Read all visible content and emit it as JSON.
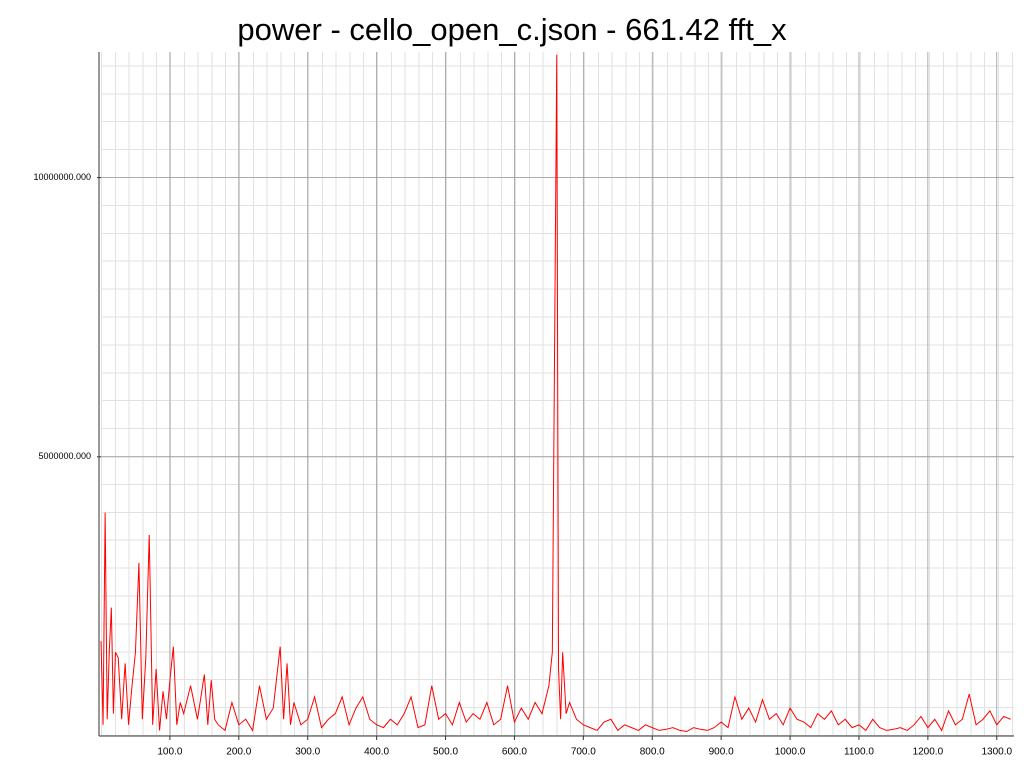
{
  "chart_data": {
    "type": "line",
    "title": "power - cello_open_c.json - 661.42 fft_x",
    "color": "#ff0000",
    "grid": true,
    "xlim": [
      0,
      1325
    ],
    "ylim": [
      0,
      12250000
    ],
    "xticks": [
      {
        "value": 100,
        "label": "100.0"
      },
      {
        "value": 200,
        "label": "200.0"
      },
      {
        "value": 300,
        "label": "300.0"
      },
      {
        "value": 400,
        "label": "400.0"
      },
      {
        "value": 500,
        "label": "500.0"
      },
      {
        "value": 600,
        "label": "600.0"
      },
      {
        "value": 700,
        "label": "700.0"
      },
      {
        "value": 800,
        "label": "800.0"
      },
      {
        "value": 900,
        "label": "900.0"
      },
      {
        "value": 1000,
        "label": "1000.0"
      },
      {
        "value": 1100,
        "label": "1100.0"
      },
      {
        "value": 1200,
        "label": "1200.0"
      },
      {
        "value": 1300,
        "label": "1300.0"
      }
    ],
    "yticks": [
      {
        "value": 5000000,
        "label": "5000000.000"
      },
      {
        "value": 10000000,
        "label": "10000000.000"
      }
    ],
    "x": [
      0,
      3,
      6,
      9,
      12,
      15,
      18,
      21,
      25,
      30,
      35,
      40,
      45,
      50,
      55,
      60,
      65,
      70,
      75,
      80,
      85,
      90,
      95,
      100,
      105,
      110,
      115,
      120,
      130,
      140,
      150,
      155,
      160,
      165,
      170,
      180,
      190,
      200,
      210,
      220,
      230,
      240,
      250,
      260,
      265,
      270,
      275,
      280,
      290,
      300,
      310,
      320,
      330,
      340,
      350,
      360,
      370,
      380,
      390,
      400,
      410,
      420,
      430,
      440,
      450,
      460,
      470,
      480,
      490,
      500,
      510,
      520,
      530,
      540,
      550,
      560,
      570,
      580,
      590,
      600,
      610,
      620,
      630,
      640,
      650,
      655,
      658,
      661.42,
      664,
      667,
      670,
      675,
      680,
      690,
      700,
      710,
      720,
      730,
      740,
      750,
      760,
      770,
      780,
      790,
      800,
      810,
      820,
      830,
      840,
      850,
      860,
      870,
      880,
      890,
      900,
      910,
      920,
      930,
      940,
      950,
      960,
      970,
      980,
      990,
      1000,
      1010,
      1020,
      1030,
      1040,
      1050,
      1060,
      1070,
      1080,
      1090,
      1100,
      1110,
      1120,
      1130,
      1140,
      1150,
      1160,
      1170,
      1180,
      1190,
      1200,
      1210,
      1220,
      1230,
      1240,
      1250,
      1260,
      1270,
      1280,
      1290,
      1300,
      1310,
      1320
    ],
    "values": [
      1700000,
      200000,
      4000000,
      300000,
      1500000,
      2300000,
      400000,
      1500000,
      1400000,
      300000,
      1300000,
      200000,
      900000,
      1500000,
      3100000,
      300000,
      1400000,
      3600000,
      200000,
      1200000,
      100000,
      800000,
      300000,
      1000000,
      1600000,
      200000,
      600000,
      400000,
      900000,
      300000,
      1100000,
      200000,
      1000000,
      300000,
      200000,
      100000,
      600000,
      200000,
      300000,
      100000,
      900000,
      300000,
      500000,
      1600000,
      300000,
      1300000,
      200000,
      600000,
      200000,
      300000,
      700000,
      150000,
      300000,
      400000,
      700000,
      200000,
      500000,
      700000,
      300000,
      200000,
      150000,
      300000,
      200000,
      400000,
      700000,
      150000,
      200000,
      900000,
      300000,
      400000,
      200000,
      600000,
      250000,
      400000,
      300000,
      600000,
      200000,
      300000,
      900000,
      250000,
      500000,
      300000,
      600000,
      400000,
      900000,
      1500000,
      6500000,
      12200000,
      1200000,
      300000,
      1500000,
      400000,
      600000,
      300000,
      200000,
      150000,
      100000,
      250000,
      300000,
      100000,
      200000,
      150000,
      100000,
      200000,
      150000,
      100000,
      120000,
      150000,
      100000,
      80000,
      150000,
      120000,
      100000,
      150000,
      250000,
      150000,
      700000,
      300000,
      500000,
      250000,
      650000,
      300000,
      400000,
      200000,
      500000,
      300000,
      250000,
      150000,
      400000,
      300000,
      450000,
      200000,
      300000,
      150000,
      200000,
      100000,
      300000,
      150000,
      100000,
      120000,
      150000,
      100000,
      200000,
      350000,
      150000,
      300000,
      100000,
      450000,
      200000,
      300000,
      750000,
      200000,
      300000,
      450000,
      200000,
      350000,
      300000
    ]
  }
}
